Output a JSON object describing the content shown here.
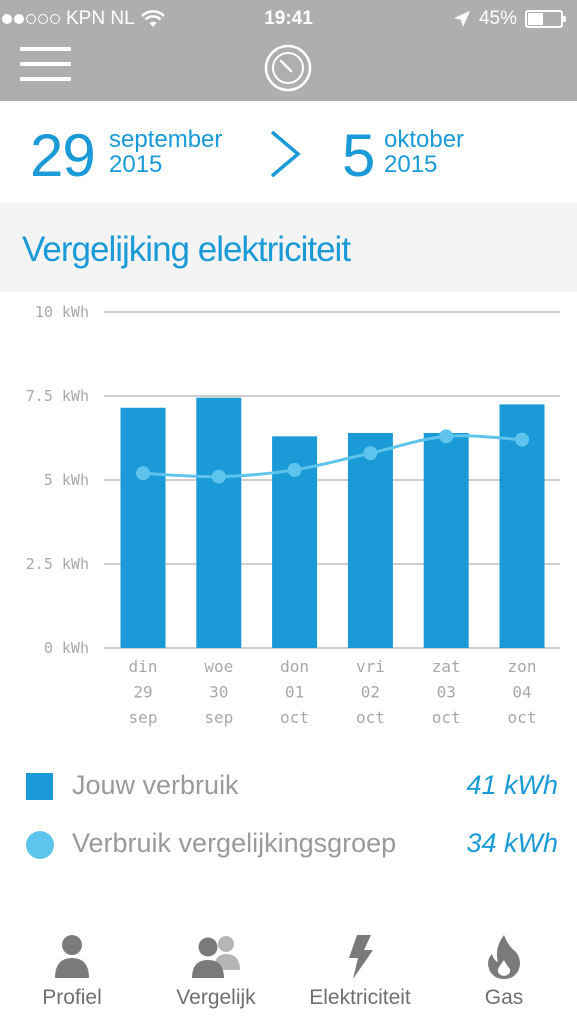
{
  "status_bar": {
    "carrier": "KPN NL",
    "time": "19:41",
    "battery": "45%",
    "battery_level": 0.45,
    "signal_bars_filled": 2,
    "signal_bars_total": 5,
    "icons": [
      "wifi-icon",
      "location-arrow-icon",
      "battery-icon"
    ]
  },
  "header": {
    "menu_icon": "hamburger-menu-icon",
    "logo_icon": "meter-gauge-icon"
  },
  "date_range": {
    "start_day": "29",
    "start_month": "september",
    "start_year": "2015",
    "separator_icon": "chevron-right-icon",
    "end_day": "5",
    "end_month": "oktober",
    "end_year": "2015"
  },
  "section": {
    "title": "Vergelijking elektriciteit"
  },
  "chart_data": {
    "type": "bar",
    "categories": [
      {
        "weekday": "din",
        "day": "29",
        "month": "sep"
      },
      {
        "weekday": "woe",
        "day": "30",
        "month": "sep"
      },
      {
        "weekday": "don",
        "day": "01",
        "month": "oct"
      },
      {
        "weekday": "vri",
        "day": "02",
        "month": "oct"
      },
      {
        "weekday": "zat",
        "day": "03",
        "month": "oct"
      },
      {
        "weekday": "zon",
        "day": "04",
        "month": "oct"
      }
    ],
    "series": [
      {
        "name": "Jouw verbruik",
        "type": "bar",
        "color": "#1a9ad7",
        "values": [
          7.15,
          7.45,
          6.3,
          6.4,
          6.4,
          7.25
        ]
      },
      {
        "name": "Verbruik vergelijkingsgroep",
        "type": "line",
        "color": "#5ec4ee",
        "values": [
          5.2,
          5.1,
          5.3,
          5.8,
          6.3,
          6.2
        ]
      }
    ],
    "yticks": [
      {
        "value": 0,
        "label": "0 kWh"
      },
      {
        "value": 2.5,
        "label": "2.5 kWh"
      },
      {
        "value": 5,
        "label": "5 kWh"
      },
      {
        "value": 7.5,
        "label": "7.5 kWh"
      },
      {
        "value": 10,
        "label": "10 kWh"
      }
    ],
    "ylim": [
      0,
      10
    ],
    "grid": true
  },
  "legend": {
    "items": [
      {
        "label": "Jouw verbruik",
        "value": "41 kWh",
        "swatch": "square",
        "color": "#1a9ad7"
      },
      {
        "label": "Verbruik vergelijkingsgroep",
        "value": "34 kWh",
        "swatch": "circle",
        "color": "#5ec4ee"
      }
    ]
  },
  "tabbar": {
    "tabs": [
      {
        "label": "Profiel",
        "icon": "person-icon"
      },
      {
        "label": "Vergelijk",
        "icon": "people-group-icon"
      },
      {
        "label": "Elektriciteit",
        "icon": "lightning-bolt-icon"
      },
      {
        "label": "Gas",
        "icon": "flame-icon"
      }
    ]
  }
}
